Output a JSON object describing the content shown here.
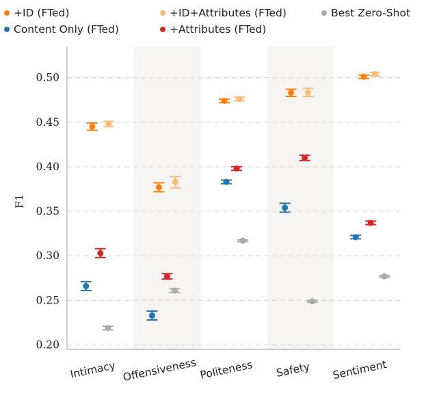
{
  "chart_data": {
    "type": "scatter",
    "xlabel": "",
    "ylabel": "F1",
    "ylim": [
      0.195,
      0.535
    ],
    "yticks": [
      "0.20",
      "0.25",
      "0.30",
      "0.35",
      "0.40",
      "0.45",
      "0.50"
    ],
    "grid": "horizontal dashed",
    "legend_placement": "top",
    "categories": [
      "Intimacy",
      "Offensiveness",
      "Politeness",
      "Safety",
      "Sentiment"
    ],
    "shaded_categories": [
      "Offensiveness",
      "Safety"
    ],
    "series": [
      {
        "name": "Content Only (FTed)",
        "color": "#1f77b4",
        "values": [
          0.266,
          0.233,
          0.383,
          0.354,
          0.321
        ],
        "lower": [
          0.261,
          0.228,
          0.381,
          0.349,
          0.319
        ],
        "upper": [
          0.271,
          0.238,
          0.385,
          0.359,
          0.323
        ]
      },
      {
        "name": "+ID (FTed)",
        "color": "#ff7f0e",
        "values": [
          0.445,
          0.377,
          0.474,
          0.483,
          0.501
        ],
        "lower": [
          0.441,
          0.372,
          0.472,
          0.479,
          0.499
        ],
        "upper": [
          0.449,
          0.382,
          0.476,
          0.487,
          0.503
        ]
      },
      {
        "name": "+Attributes (FTed)",
        "color": "#d62728",
        "values": [
          0.303,
          0.277,
          0.398,
          0.41,
          0.337
        ],
        "lower": [
          0.298,
          0.274,
          0.396,
          0.407,
          0.335
        ],
        "upper": [
          0.308,
          0.28,
          0.4,
          0.413,
          0.339
        ]
      },
      {
        "name": "+ID+Attributes (FTed)",
        "color": "#ffbb78",
        "values": [
          0.448,
          0.383,
          0.476,
          0.483,
          0.504
        ],
        "lower": [
          0.445,
          0.376,
          0.474,
          0.479,
          0.502
        ],
        "upper": [
          0.451,
          0.389,
          0.478,
          0.488,
          0.506
        ]
      },
      {
        "name": "Best Zero-Shot",
        "color": "#aaaaaa",
        "values": [
          0.219,
          0.261,
          0.317,
          0.249,
          0.277
        ],
        "lower": [
          0.217,
          0.259,
          0.316,
          0.248,
          0.276
        ],
        "upper": [
          0.221,
          0.263,
          0.318,
          0.25,
          0.278
        ]
      }
    ]
  },
  "legend": {
    "items": [
      {
        "label": "+ID (FTed)",
        "color": "#ff7f0e"
      },
      {
        "label": "+ID+Attributes (FTed)",
        "color": "#ffbb78"
      },
      {
        "label": "Best Zero-Shot",
        "color": "#aaaaaa"
      },
      {
        "label": "Content Only (FTed)",
        "color": "#1f77b4"
      },
      {
        "label": "+Attributes (FTed)",
        "color": "#d62728"
      }
    ]
  }
}
